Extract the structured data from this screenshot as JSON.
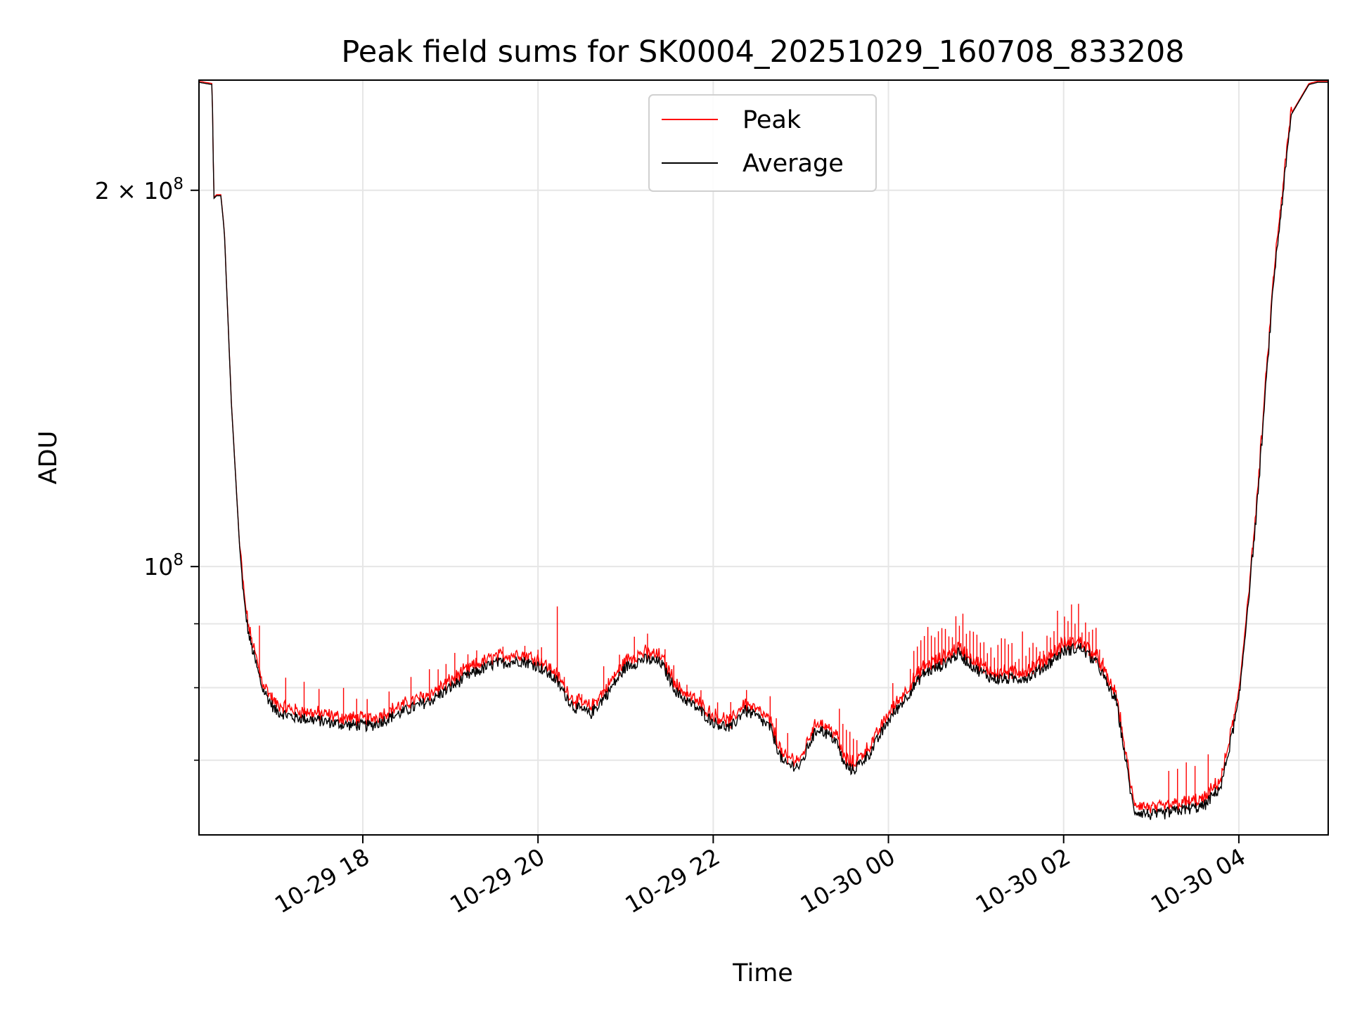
{
  "chart_data": {
    "type": "line",
    "title": "Peak field sums for SK0004_20251029_160708_833208",
    "xlabel": "Time",
    "ylabel": "ADU",
    "yscale": "log",
    "ylim": [
      61000000,
      245000000
    ],
    "xlim_hours": [
      16.13,
      5.02
    ],
    "grid": true,
    "legend_position": "top-center",
    "x_ticks": [
      {
        "label": "10-29 18",
        "hour": 18
      },
      {
        "label": "10-29 20",
        "hour": 20
      },
      {
        "label": "10-29 22",
        "hour": 22
      },
      {
        "label": "10-30 00",
        "hour": 24
      },
      {
        "label": "10-30 02",
        "hour": 26
      },
      {
        "label": "10-30 04",
        "hour": 28
      }
    ],
    "y_ticks_major": [
      {
        "base": "10",
        "exp": "8",
        "coef": "",
        "value": 100000000
      },
      {
        "base": "10",
        "exp": "8",
        "coef": "2 × ",
        "value": 200000000
      }
    ],
    "y_ticks_minor": [
      70000000,
      80000000,
      90000000
    ],
    "average_keypoints": {
      "hour": [
        16.13,
        16.28,
        16.3,
        16.33,
        16.38,
        16.42,
        16.5,
        16.6,
        16.65,
        16.7,
        16.85,
        17.0,
        17.2,
        17.5,
        17.8,
        18.1,
        18.4,
        18.8,
        19.2,
        19.5,
        19.8,
        20.0,
        20.2,
        20.4,
        20.6,
        20.8,
        21.0,
        21.2,
        21.4,
        21.6,
        21.8,
        22.0,
        22.2,
        22.35,
        22.5,
        22.65,
        22.8,
        23.0,
        23.1,
        23.2,
        23.4,
        23.5,
        23.6,
        23.8,
        24.0,
        24.2,
        24.4,
        24.6,
        24.8,
        25.0,
        25.2,
        25.4,
        25.6,
        25.8,
        26.0,
        26.2,
        26.4,
        26.5,
        26.6,
        26.8,
        27.0,
        27.1,
        27.3,
        27.6,
        27.8,
        28.0,
        28.2,
        28.4,
        28.6,
        28.8,
        28.9,
        29.0
      ],
      "value": [
        244000000,
        243000000,
        197000000,
        198000000,
        198000000,
        185000000,
        135000000,
        102000000,
        93000000,
        88000000,
        80000000,
        76700000,
        75800000,
        75300000,
        74700000,
        74600000,
        76200000,
        78300000,
        81800000,
        83600000,
        84100000,
        83300000,
        81200000,
        77300000,
        76200000,
        79300000,
        83100000,
        84300000,
        83800000,
        79000000,
        77200000,
        75100000,
        74200000,
        76800000,
        75800000,
        74300000,
        69500000,
        69200000,
        72300000,
        74300000,
        72600000,
        69300000,
        68700000,
        71100000,
        75300000,
        78600000,
        82100000,
        83300000,
        85200000,
        82800000,
        81300000,
        81300000,
        81600000,
        83300000,
        85600000,
        86100000,
        83300000,
        80300000,
        78100000,
        63800000,
        63300000,
        63300000,
        63800000,
        64300000,
        66800000,
        78000000,
        110000000,
        170000000,
        230000000,
        243000000,
        244000000,
        244000000
      ]
    },
    "series": [
      {
        "name": "Peak",
        "color": "#ff0000"
      },
      {
        "name": "Average",
        "color": "#000000"
      }
    ]
  }
}
